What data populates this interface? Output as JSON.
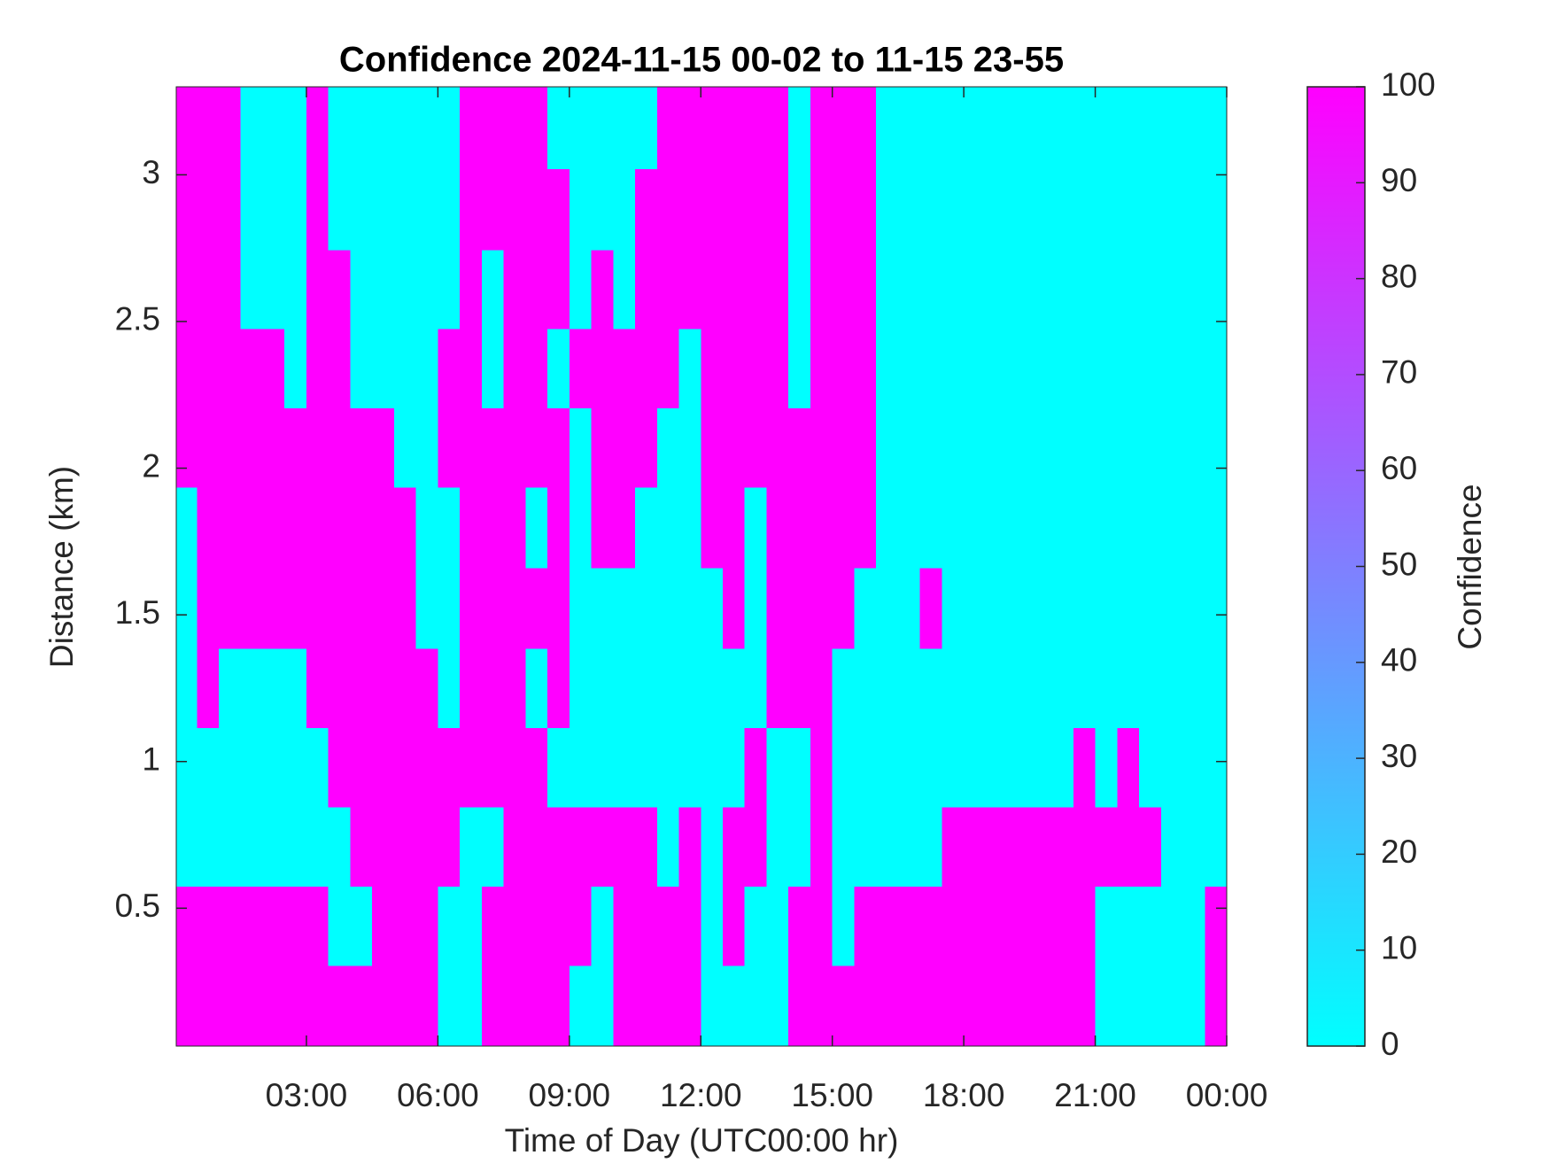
{
  "chart_data": {
    "type": "heatmap",
    "title": "Confidence 2024-11-15 00-02 to 11-15 23-55",
    "x_label": "Time of Day (UTC00:00 hr)",
    "y_label": "Distance (km)",
    "colorbar_label": "Confidence",
    "colormap": [
      "#00ffff",
      "#ff00ff"
    ],
    "clim": [
      0,
      100
    ],
    "cticks": [
      0,
      10,
      20,
      30,
      40,
      50,
      60,
      70,
      80,
      90,
      100
    ],
    "xlim": [
      0.03,
      24
    ],
    "xticks": [
      {
        "value": 3,
        "label": "03:00"
      },
      {
        "value": 6,
        "label": "06:00"
      },
      {
        "value": 9,
        "label": "09:00"
      },
      {
        "value": 12,
        "label": "12:00"
      },
      {
        "value": 15,
        "label": "15:00"
      },
      {
        "value": 18,
        "label": "18:00"
      },
      {
        "value": 21,
        "label": "21:00"
      },
      {
        "value": 24,
        "label": "00:00"
      }
    ],
    "ylim": [
      0.03,
      3.3
    ],
    "yticks": [
      0.5,
      1,
      1.5,
      2,
      2.5,
      3
    ],
    "x": [
      0.25,
      0.75,
      1.25,
      1.75,
      2.25,
      2.75,
      3.25,
      3.75,
      4.25,
      4.75,
      5.25,
      5.75,
      6.25,
      6.75,
      7.25,
      7.75,
      8.25,
      8.75,
      9.25,
      9.75,
      10.25,
      10.75,
      11.25,
      11.75,
      12.25,
      12.75,
      13.25,
      13.75,
      14.25,
      14.75,
      15.25,
      15.75,
      16.25,
      16.75,
      17.25,
      17.75,
      18.25,
      18.75,
      19.25,
      19.75,
      20.25,
      20.75,
      21.25,
      21.75,
      22.25,
      22.75,
      23.25,
      23.75
    ],
    "y": [
      0.17,
      0.44,
      0.71,
      0.98,
      1.25,
      1.52,
      1.8,
      2.07,
      2.34,
      2.61,
      2.88,
      3.16
    ],
    "z": [
      [
        100,
        100,
        100,
        100,
        100,
        100,
        100,
        100,
        100,
        100,
        100,
        100,
        0,
        0,
        100,
        100,
        100,
        100,
        0,
        0,
        100,
        100,
        100,
        100,
        0,
        0,
        0,
        0,
        100,
        100,
        100,
        100,
        100,
        100,
        100,
        100,
        100,
        100,
        100,
        100,
        100,
        100,
        0,
        0,
        0,
        0,
        0,
        100
      ],
      [
        100,
        100,
        100,
        100,
        100,
        100,
        100,
        0,
        0,
        100,
        100,
        100,
        0,
        0,
        100,
        100,
        100,
        100,
        100,
        0,
        100,
        100,
        100,
        100,
        0,
        100,
        0,
        0,
        100,
        100,
        0,
        100,
        100,
        100,
        100,
        100,
        100,
        100,
        100,
        100,
        100,
        100,
        0,
        0,
        0,
        0,
        0,
        100
      ],
      [
        0,
        0,
        0,
        0,
        0,
        0,
        0,
        0,
        100,
        100,
        100,
        100,
        100,
        0,
        0,
        100,
        100,
        100,
        100,
        100,
        100,
        100,
        0,
        100,
        0,
        100,
        100,
        0,
        0,
        100,
        0,
        0,
        0,
        0,
        0,
        100,
        100,
        100,
        100,
        100,
        100,
        100,
        100,
        100,
        100,
        0,
        0,
        0
      ],
      [
        0,
        0,
        0,
        0,
        0,
        0,
        0,
        100,
        100,
        100,
        100,
        100,
        100,
        100,
        100,
        100,
        100,
        0,
        0,
        0,
        0,
        0,
        0,
        0,
        0,
        0,
        100,
        0,
        0,
        100,
        0,
        0,
        0,
        0,
        0,
        0,
        0,
        0,
        0,
        0,
        0,
        100,
        0,
        100,
        0,
        0,
        0,
        0
      ],
      [
        0,
        100,
        0,
        0,
        0,
        0,
        100,
        100,
        100,
        100,
        100,
        100,
        0,
        100,
        100,
        100,
        0,
        100,
        0,
        0,
        0,
        0,
        0,
        0,
        0,
        0,
        0,
        100,
        100,
        100,
        0,
        0,
        0,
        0,
        0,
        0,
        0,
        0,
        0,
        0,
        0,
        0,
        0,
        0,
        0,
        0,
        0,
        0
      ],
      [
        0,
        100,
        100,
        100,
        100,
        100,
        100,
        100,
        100,
        100,
        100,
        0,
        0,
        100,
        100,
        100,
        100,
        100,
        0,
        0,
        0,
        0,
        0,
        0,
        0,
        100,
        0,
        100,
        100,
        100,
        100,
        0,
        0,
        0,
        100,
        0,
        0,
        0,
        0,
        0,
        0,
        0,
        0,
        0,
        0,
        0,
        0,
        0
      ],
      [
        0,
        100,
        100,
        100,
        100,
        100,
        100,
        100,
        100,
        100,
        100,
        0,
        0,
        100,
        100,
        100,
        0,
        100,
        0,
        100,
        100,
        0,
        0,
        0,
        100,
        100,
        0,
        100,
        100,
        100,
        100,
        100,
        0,
        0,
        0,
        0,
        0,
        0,
        0,
        0,
        0,
        0,
        0,
        0,
        0,
        0,
        0,
        0
      ],
      [
        100,
        100,
        100,
        100,
        100,
        100,
        100,
        100,
        100,
        100,
        0,
        0,
        100,
        100,
        100,
        100,
        100,
        100,
        0,
        100,
        100,
        100,
        0,
        0,
        100,
        100,
        100,
        100,
        100,
        100,
        100,
        100,
        0,
        0,
        0,
        0,
        0,
        0,
        0,
        0,
        0,
        0,
        0,
        0,
        0,
        0,
        0,
        0
      ],
      [
        100,
        100,
        100,
        100,
        100,
        0,
        100,
        100,
        0,
        0,
        0,
        0,
        100,
        100,
        0,
        100,
        100,
        0,
        100,
        100,
        100,
        100,
        100,
        0,
        100,
        100,
        100,
        100,
        0,
        100,
        100,
        100,
        0,
        0,
        0,
        0,
        0,
        0,
        0,
        0,
        0,
        0,
        0,
        0,
        0,
        0,
        0,
        0
      ],
      [
        100,
        100,
        100,
        0,
        0,
        0,
        100,
        100,
        0,
        0,
        0,
        0,
        0,
        100,
        0,
        100,
        100,
        100,
        0,
        100,
        0,
        100,
        100,
        100,
        100,
        100,
        100,
        100,
        0,
        100,
        100,
        100,
        0,
        0,
        0,
        0,
        0,
        0,
        0,
        0,
        0,
        0,
        0,
        0,
        0,
        0,
        0,
        0
      ],
      [
        100,
        100,
        100,
        0,
        0,
        0,
        100,
        0,
        0,
        0,
        0,
        0,
        0,
        100,
        100,
        100,
        100,
        100,
        0,
        0,
        0,
        100,
        100,
        100,
        100,
        100,
        100,
        100,
        0,
        100,
        100,
        100,
        0,
        0,
        0,
        0,
        0,
        0,
        0,
        0,
        0,
        0,
        0,
        0,
        0,
        0,
        0,
        0
      ],
      [
        100,
        100,
        100,
        0,
        0,
        0,
        100,
        0,
        0,
        0,
        0,
        0,
        0,
        100,
        100,
        100,
        100,
        0,
        0,
        0,
        0,
        0,
        100,
        100,
        100,
        100,
        100,
        100,
        0,
        100,
        100,
        100,
        0,
        0,
        0,
        0,
        0,
        0,
        0,
        0,
        0,
        0,
        0,
        0,
        0,
        0,
        0,
        0
      ]
    ]
  }
}
